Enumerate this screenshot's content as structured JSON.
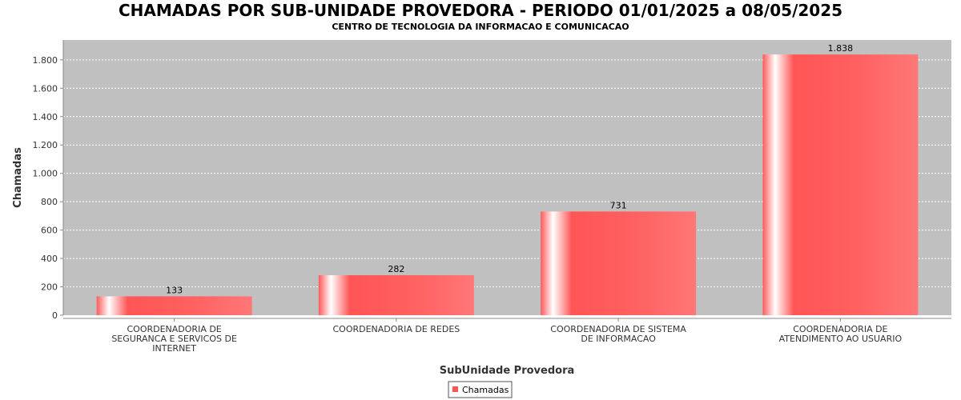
{
  "chart_data": {
    "type": "bar",
    "title": "CHAMADAS POR SUB-UNIDADE PROVEDORA - PERIODO 01/01/2025 a 08/05/2025",
    "subtitle": "CENTRO DE TECNOLOGIA DA INFORMACAO E COMUNICACAO",
    "xlabel": "SubUnidade Provedora",
    "ylabel": "Chamadas",
    "categories": [
      [
        "COORDENADORIA DE",
        "SEGURANCA E SERVICOS DE",
        "INTERNET"
      ],
      [
        "COORDENADORIA DE REDES"
      ],
      [
        "COORDENADORIA DE SISTEMA",
        "DE INFORMACAO"
      ],
      [
        "COORDENADORIA DE",
        "ATENDIMENTO AO USUARIO"
      ]
    ],
    "series": [
      {
        "name": "Chamadas",
        "values": [
          133,
          282,
          731,
          1838
        ],
        "labels": [
          "133",
          "282",
          "731",
          "1.838"
        ]
      }
    ],
    "ylim": [
      0,
      1940
    ],
    "yticks": [
      0,
      200,
      400,
      600,
      800,
      1000,
      1200,
      1400,
      1600,
      1800
    ],
    "ytick_labels": [
      "0",
      "200",
      "400",
      "600",
      "800",
      "1.000",
      "1.200",
      "1.400",
      "1.600",
      "1.800"
    ],
    "grid": true,
    "legend": "bottom-center",
    "colors": {
      "plot_background": "#c0c0c0",
      "bar": "#ff5555",
      "grid": "#ffffff"
    }
  }
}
